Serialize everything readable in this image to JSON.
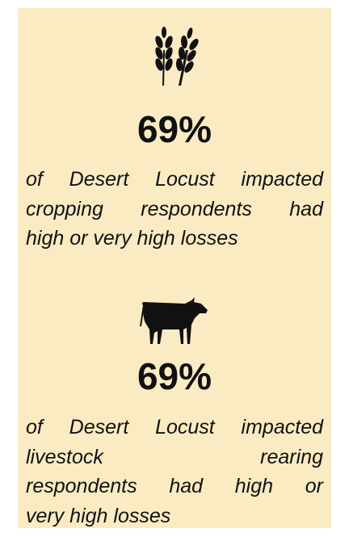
{
  "stats": [
    {
      "value": "69%",
      "text_lines": [
        "of Desert Locust impacted",
        "cropping respondents had",
        "high or very high losses"
      ]
    },
    {
      "value": "69%",
      "text_lines": [
        "of Desert Locust impacted",
        "livestock rearing",
        "respondents had high or",
        "very high losses"
      ]
    }
  ]
}
